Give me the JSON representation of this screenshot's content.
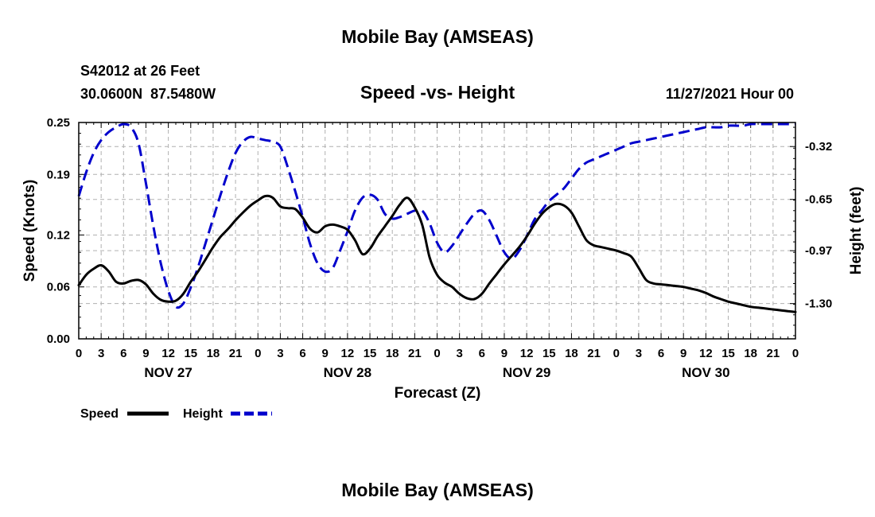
{
  "header": {
    "title_top": "Mobile Bay (AMSEAS)",
    "station": "S42012 at 26 Feet",
    "coords": "30.0600N  87.5480W",
    "subtitle": "Speed -vs- Height",
    "run_time": "11/27/2021 Hour 00",
    "title_bottom": "Mobile Bay (AMSEAS)"
  },
  "chart_data": {
    "type": "line",
    "title": "Speed -vs- Height",
    "xlabel": "Forecast (Z)",
    "ylabel_left": "Speed (Knots)",
    "ylabel_right": "Height (feet)",
    "x_range_hours": [
      0,
      96
    ],
    "y_left_range": [
      0,
      0.25
    ],
    "y_left_ticks": [
      "0.00",
      "0.06",
      "0.12",
      "0.19",
      "0.25"
    ],
    "y_right_range": [
      -1.52,
      -0.17
    ],
    "y_right_ticks": [
      "-1.30",
      "-0.97",
      "-0.65",
      "-0.32"
    ],
    "x_tick_labels": [
      "0",
      "3",
      "6",
      "9",
      "12",
      "15",
      "18",
      "21",
      "0",
      "3",
      "6",
      "9",
      "12",
      "15",
      "18",
      "21",
      "0",
      "3",
      "6",
      "9",
      "12",
      "15",
      "18",
      "21",
      "0",
      "3",
      "6",
      "9",
      "12",
      "15",
      "18",
      "21",
      "0"
    ],
    "day_labels": [
      "NOV 27",
      "NOV 28",
      "NOV 29",
      "NOV 30"
    ],
    "grid": true,
    "legend": [
      "Speed",
      "Height"
    ],
    "series": [
      {
        "name": "Speed",
        "axis": "left",
        "color": "#000000",
        "style": "solid",
        "x": [
          0,
          1,
          2,
          3,
          4,
          5,
          6,
          7,
          8,
          9,
          10,
          11,
          12,
          13,
          14,
          15,
          16,
          17,
          18,
          19,
          20,
          21,
          22,
          23,
          24,
          25,
          26,
          27,
          28,
          29,
          30,
          31,
          32,
          33,
          34,
          35,
          36,
          37,
          38,
          39,
          40,
          41,
          42,
          43,
          44,
          45,
          46,
          47,
          48,
          49,
          50,
          51,
          52,
          53,
          54,
          55,
          56,
          57,
          58,
          59,
          60,
          61,
          62,
          63,
          64,
          65,
          66,
          67,
          68,
          69,
          70,
          71,
          72,
          73,
          74,
          75,
          76,
          77,
          78,
          79,
          80,
          81,
          82,
          83,
          84,
          85,
          86,
          87,
          88,
          89,
          90,
          91,
          92,
          93,
          94,
          95,
          96
        ],
        "values": [
          0.062,
          0.074,
          0.081,
          0.085,
          0.078,
          0.066,
          0.064,
          0.067,
          0.068,
          0.063,
          0.052,
          0.045,
          0.043,
          0.044,
          0.052,
          0.066,
          0.078,
          0.092,
          0.106,
          0.118,
          0.127,
          0.137,
          0.146,
          0.154,
          0.16,
          0.165,
          0.163,
          0.153,
          0.151,
          0.15,
          0.14,
          0.127,
          0.123,
          0.13,
          0.132,
          0.13,
          0.126,
          0.114,
          0.098,
          0.104,
          0.118,
          0.13,
          0.142,
          0.155,
          0.163,
          0.152,
          0.132,
          0.094,
          0.074,
          0.065,
          0.06,
          0.052,
          0.047,
          0.046,
          0.052,
          0.064,
          0.075,
          0.086,
          0.096,
          0.106,
          0.118,
          0.132,
          0.144,
          0.152,
          0.156,
          0.154,
          0.146,
          0.13,
          0.114,
          0.108,
          0.106,
          0.104,
          0.102,
          0.099,
          0.095,
          0.082,
          0.068,
          0.064,
          0.063,
          0.062,
          0.061,
          0.06,
          0.058,
          0.056,
          0.053,
          0.049,
          0.046,
          0.043,
          0.041,
          0.039,
          0.037,
          0.036,
          0.035,
          0.034,
          0.033,
          0.032,
          0.031
        ]
      },
      {
        "name": "Height",
        "axis": "right",
        "color": "#0000cc",
        "style": "dashed",
        "x": [
          0,
          1,
          2,
          3,
          4,
          5,
          6,
          7,
          8,
          9,
          10,
          11,
          12,
          13,
          14,
          15,
          16,
          17,
          18,
          19,
          20,
          21,
          22,
          23,
          24,
          25,
          26,
          27,
          28,
          29,
          30,
          31,
          32,
          33,
          34,
          35,
          36,
          37,
          38,
          39,
          40,
          41,
          42,
          43,
          44,
          45,
          46,
          47,
          48,
          49,
          50,
          51,
          52,
          53,
          54,
          55,
          56,
          57,
          58,
          59,
          60,
          61,
          62,
          63,
          64,
          65,
          66,
          67,
          68,
          69,
          70,
          71,
          72,
          73,
          74,
          75,
          76,
          77,
          78,
          79,
          80,
          81,
          82,
          83,
          84,
          85,
          86,
          87,
          88,
          89,
          90,
          91,
          92,
          93,
          94,
          95,
          96
        ],
        "values": [
          -0.63,
          -0.48,
          -0.36,
          -0.28,
          -0.23,
          -0.2,
          -0.18,
          -0.2,
          -0.3,
          -0.55,
          -0.82,
          -1.05,
          -1.22,
          -1.32,
          -1.3,
          -1.2,
          -1.07,
          -0.92,
          -0.77,
          -0.62,
          -0.48,
          -0.36,
          -0.29,
          -0.26,
          -0.27,
          -0.28,
          -0.29,
          -0.32,
          -0.45,
          -0.6,
          -0.76,
          -0.93,
          -1.05,
          -1.1,
          -1.08,
          -0.97,
          -0.85,
          -0.72,
          -0.64,
          -0.62,
          -0.65,
          -0.74,
          -0.77,
          -0.76,
          -0.74,
          -0.72,
          -0.72,
          -0.8,
          -0.92,
          -0.98,
          -0.94,
          -0.87,
          -0.8,
          -0.74,
          -0.72,
          -0.78,
          -0.88,
          -0.98,
          -1.02,
          -0.97,
          -0.88,
          -0.78,
          -0.72,
          -0.66,
          -0.62,
          -0.58,
          -0.52,
          -0.46,
          -0.42,
          -0.4,
          -0.38,
          -0.36,
          -0.34,
          -0.32,
          -0.3,
          -0.29,
          -0.28,
          -0.27,
          -0.26,
          -0.25,
          -0.24,
          -0.23,
          -0.22,
          -0.21,
          -0.2,
          -0.2,
          -0.2,
          -0.19,
          -0.19,
          -0.19,
          -0.18,
          -0.18,
          -0.18,
          -0.18,
          -0.18,
          -0.18,
          -0.18
        ]
      }
    ]
  }
}
